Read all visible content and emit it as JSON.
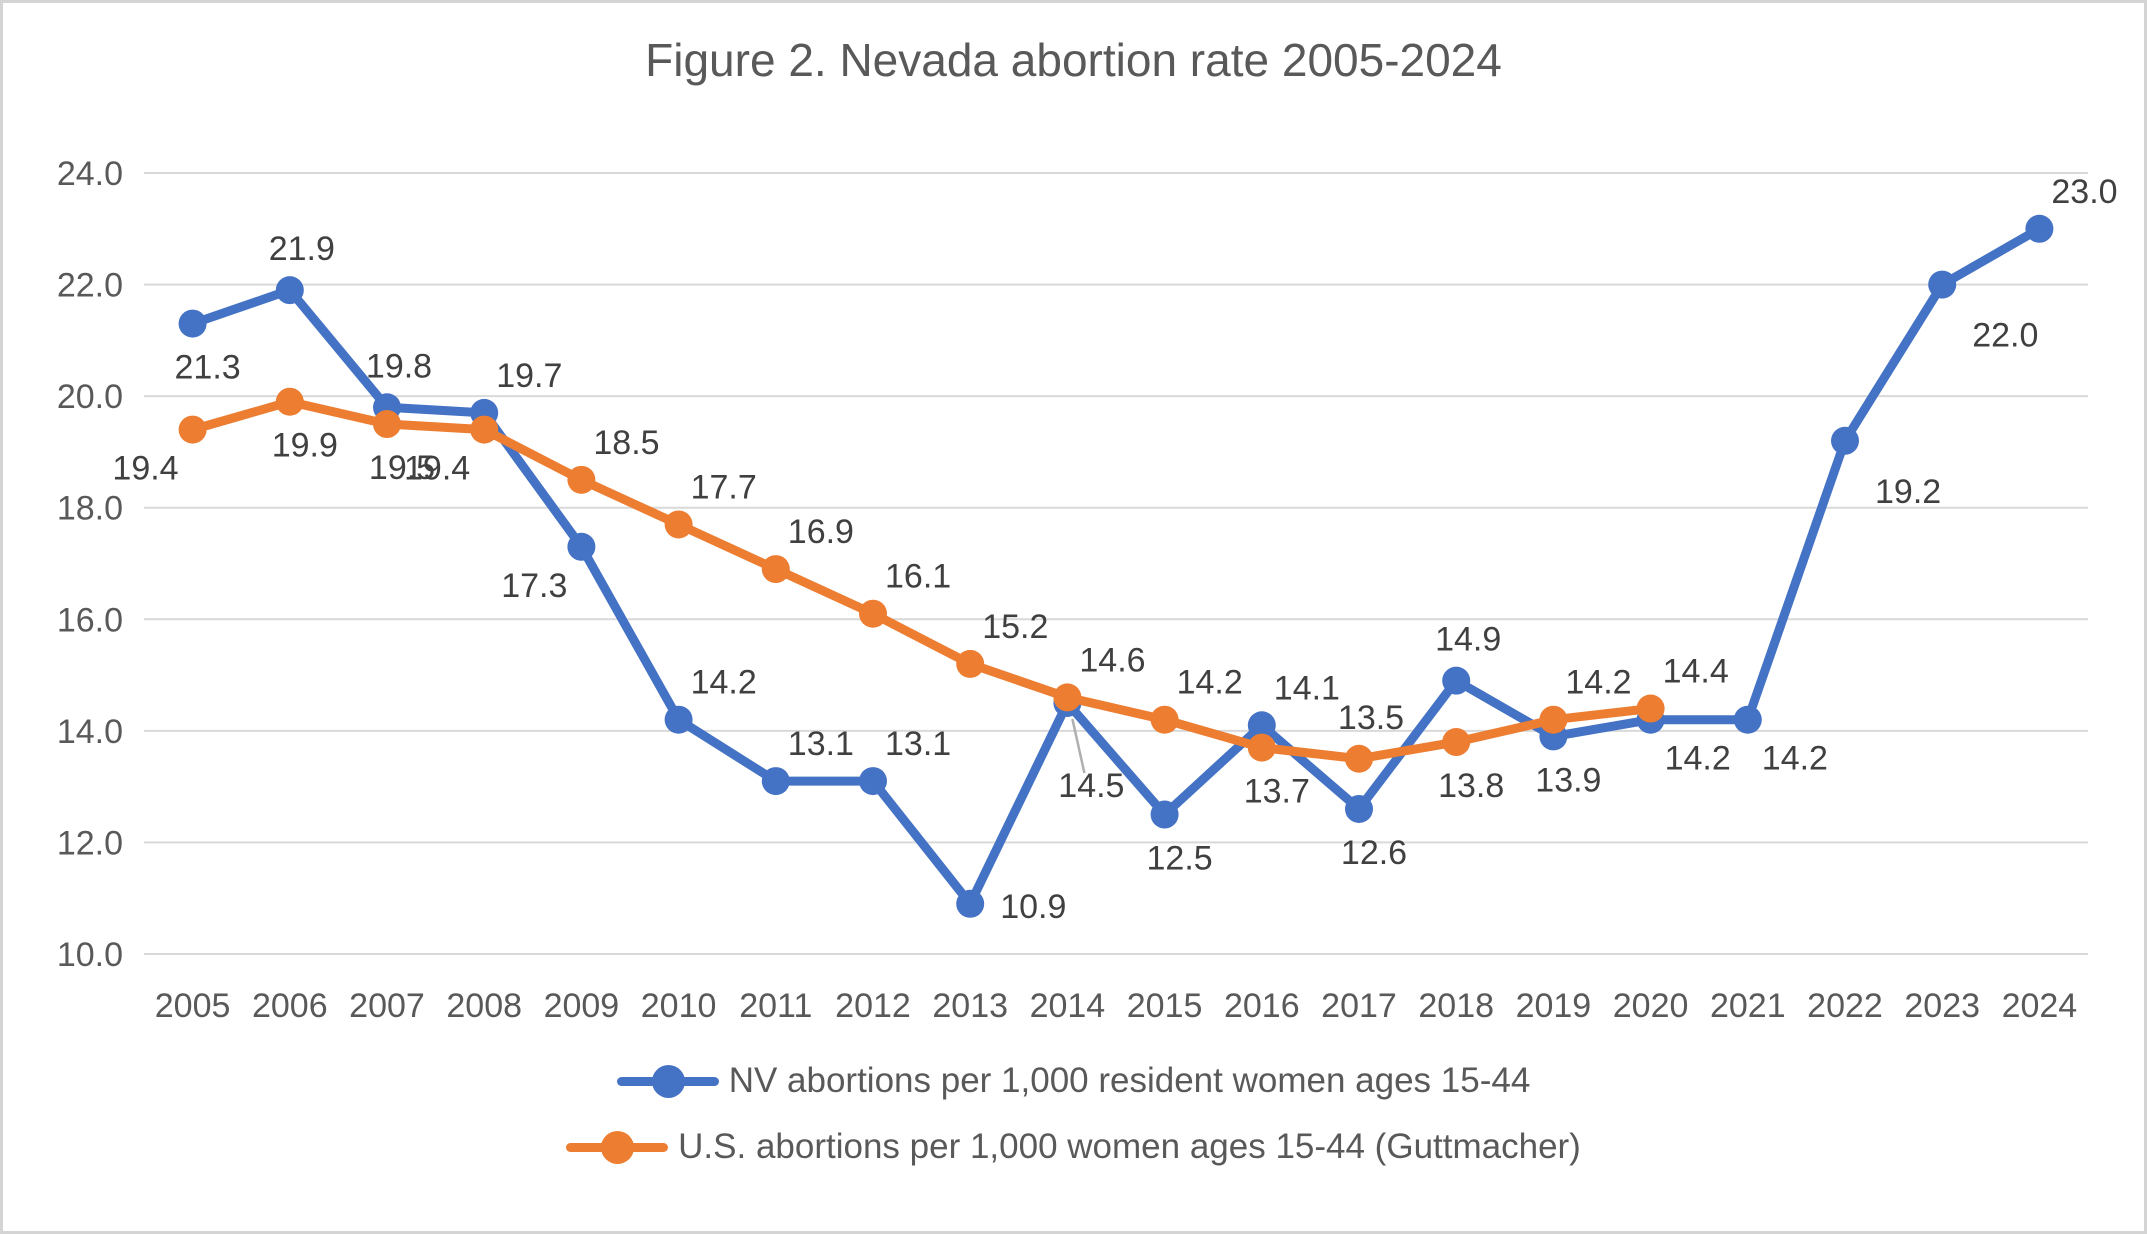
{
  "chart_data": {
    "type": "line",
    "title": "Figure 2. Nevada abortion rate 2005-2024",
    "categories": [
      "2005",
      "2006",
      "2007",
      "2008",
      "2009",
      "2010",
      "2011",
      "2012",
      "2013",
      "2014",
      "2015",
      "2016",
      "2017",
      "2018",
      "2019",
      "2020",
      "2021",
      "2022",
      "2023",
      "2024"
    ],
    "y_axis": {
      "min": 10,
      "max": 24,
      "step": 2,
      "ticks": [
        "10.0",
        "12.0",
        "14.0",
        "16.0",
        "18.0",
        "20.0",
        "22.0",
        "24.0"
      ]
    },
    "grid": true,
    "legend_position": "bottom",
    "colors": {
      "nv_blue": "#4472C4",
      "us_orange": "#ED7D31",
      "gridline": "#D9D9D9",
      "axis_text": "#595959",
      "data_label_text": "#404040",
      "leader_line": "#AFAFAF"
    },
    "series": [
      {
        "name": "NV abortions per 1,000 resident women ages 15-44",
        "color": "#4472C4",
        "values": [
          21.3,
          21.9,
          19.8,
          19.7,
          17.3,
          14.2,
          13.1,
          13.1,
          10.9,
          14.5,
          12.5,
          14.1,
          12.6,
          14.9,
          13.9,
          14.2,
          14.2,
          19.2,
          22.0,
          23.0
        ],
        "labels": [
          "21.3",
          "21.9",
          "19.8",
          "19.7",
          "17.3",
          "14.2",
          "13.1",
          "13.1",
          "10.9",
          "14.5",
          "12.5",
          "14.1",
          "12.6",
          "14.9",
          "13.9",
          "14.2",
          "14.2",
          "19.2",
          "22.0",
          "23.0"
        ],
        "label_pos": [
          "below",
          "above",
          "above",
          "above-right",
          "below-left",
          "above-right",
          "above-right",
          "above-right",
          "right",
          "leader",
          "below",
          "above-right",
          "below",
          "above",
          "below",
          "below-right",
          "below-right",
          "right-below",
          "right-below",
          "above-right"
        ]
      },
      {
        "name": "U.S. abortions per 1,000 women ages 15-44 (Guttmacher)",
        "color": "#ED7D31",
        "values": [
          19.4,
          19.9,
          19.5,
          19.4,
          18.5,
          17.7,
          16.9,
          16.1,
          15.2,
          14.6,
          14.2,
          13.7,
          13.5,
          13.8,
          14.2,
          14.4
        ],
        "labels": [
          "19.4",
          "19.9",
          "19.5",
          "19.4",
          "18.5",
          "17.7",
          "16.9",
          "16.1",
          "15.2",
          "14.6",
          "14.2",
          "13.7",
          "13.5",
          "13.8",
          "14.2",
          "14.4"
        ],
        "label_pos": [
          "below-left",
          "below",
          "below",
          "below-left",
          "above-right",
          "above-right",
          "above-right",
          "above-right",
          "above-right",
          "above-right",
          "above-right",
          "below",
          "above",
          "below",
          "above-right",
          "above-right"
        ]
      }
    ]
  }
}
